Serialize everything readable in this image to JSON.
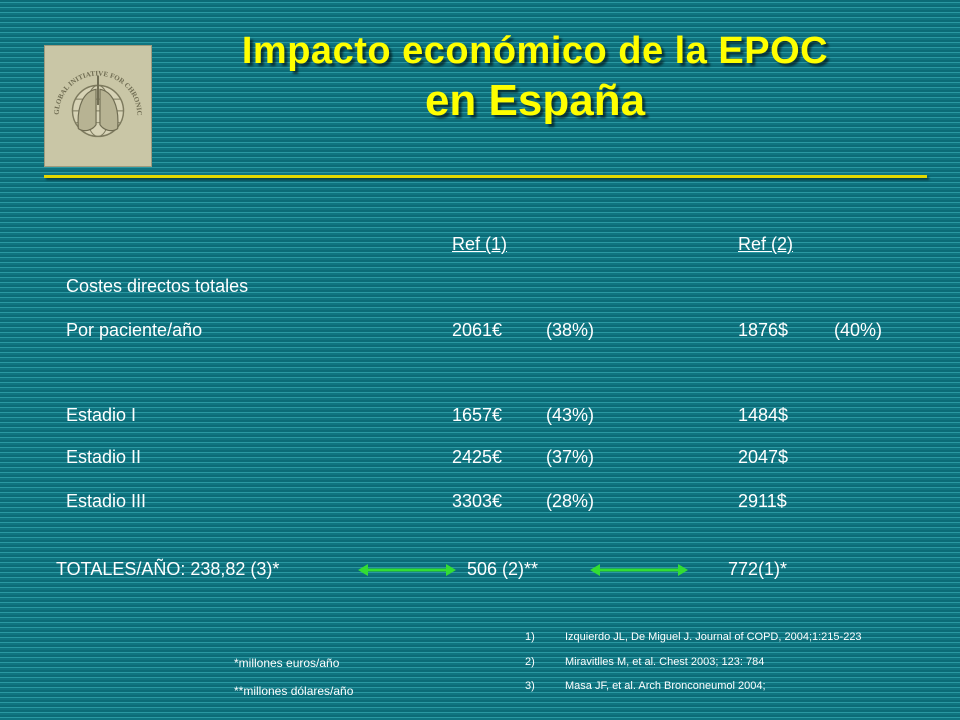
{
  "logo": {
    "text": "GLOBAL INITIATIVE FOR CHRONIC OBSTRUCTIVE LUNG DISEASE™"
  },
  "title": {
    "line1": "Impacto económico de la EPOC",
    "line2": "en España"
  },
  "table": {
    "headers": {
      "ref1": "Ref (1)",
      "ref2": "Ref (2)"
    },
    "section_label": "Costes directos totales",
    "rows": [
      {
        "label": "Por paciente/año",
        "ref1_value": "2061€",
        "ref1_pct": "(38%)",
        "ref2_value": "1876$",
        "ref2_pct": "(40%)"
      },
      {
        "label": "Estadio I",
        "ref1_value": "1657€",
        "ref1_pct": "(43%)",
        "ref2_value": "1484$"
      },
      {
        "label": "Estadio II",
        "ref1_value": "2425€",
        "ref1_pct": "(37%)",
        "ref2_value": "2047$"
      },
      {
        "label": "Estadio III",
        "ref1_value": "3303€",
        "ref1_pct": "(28%)",
        "ref2_value": "2911$"
      }
    ]
  },
  "totals": {
    "label": "TOTALES/AÑO: 238,82 (3)*",
    "middle": "506 (2)**",
    "right": "772(1)*",
    "arrow_color": "#33dd33"
  },
  "footnotes": {
    "euros": "*millones euros/año",
    "dollars": "**millones dólares/año"
  },
  "references": [
    {
      "num": "1)",
      "text": "Izquierdo JL, De Miguel J. Journal of COPD, 2004;1:215-223"
    },
    {
      "num": "2)",
      "text": "Miravitlles M, et al. Chest 2003; 123: 784"
    },
    {
      "num": "3)",
      "text": "Masa JF, et al. Arch Bronconeumol 2004;"
    }
  ],
  "colors": {
    "background": "#0f7480",
    "title": "#ffff00",
    "rule": "#e3d800",
    "text": "#ffffff"
  }
}
